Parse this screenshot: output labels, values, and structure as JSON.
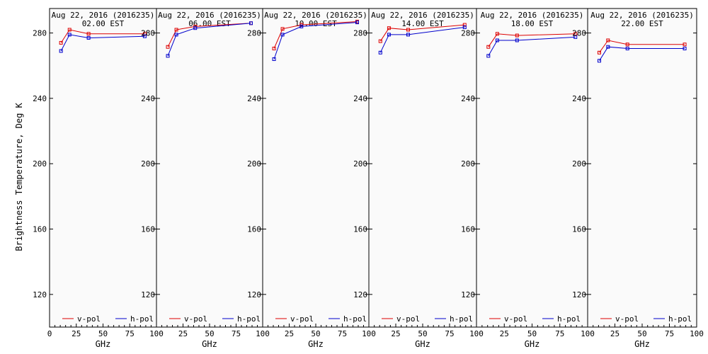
{
  "chart_data": {
    "type": "line",
    "ylabel": "Brightness Temperature, Deg K",
    "xlabel": "GHz",
    "ylim": [
      100,
      295
    ],
    "xlim": [
      0,
      100
    ],
    "yticks": [
      120,
      160,
      200,
      240,
      280
    ],
    "xticks": [
      0,
      25,
      50,
      75,
      100
    ],
    "series_colors": {
      "v-pol": "#dd0000",
      "h-pol": "#0000cc"
    },
    "legend": [
      "v-pol",
      "h-pol"
    ],
    "legend_placement": "bottom",
    "grid": false,
    "panels": [
      {
        "title": "Aug 22, 2016 (2016235)",
        "subtitle": "02.00 EST",
        "series": [
          {
            "name": "v-pol",
            "x": [
              10.7,
              18.7,
              36.5,
              89
            ],
            "y": [
              274,
              282,
              279.5,
              279.5
            ]
          },
          {
            "name": "h-pol",
            "x": [
              10.7,
              18.7,
              36.5,
              89
            ],
            "y": [
              269,
              279,
              277,
              278
            ]
          }
        ]
      },
      {
        "title": "Aug 22, 2016 (2016235)",
        "subtitle": "06.00 EST",
        "series": [
          {
            "name": "v-pol",
            "x": [
              10.7,
              18.7,
              36.5,
              89
            ],
            "y": [
              271.5,
              282,
              284,
              286
            ]
          },
          {
            "name": "h-pol",
            "x": [
              10.7,
              18.7,
              36.5,
              89
            ],
            "y": [
              266,
              279,
              283,
              286
            ]
          }
        ]
      },
      {
        "title": "Aug 22, 2016 (2016235)",
        "subtitle": "10.00 EST",
        "series": [
          {
            "name": "v-pol",
            "x": [
              10.7,
              18.7,
              36.5,
              89
            ],
            "y": [
              270.5,
              282.5,
              285,
              287
            ]
          },
          {
            "name": "h-pol",
            "x": [
              10.7,
              18.7,
              36.5,
              89
            ],
            "y": [
              264,
              279,
              284,
              286.5
            ]
          }
        ]
      },
      {
        "title": "Aug 22, 2016 (2016235)",
        "subtitle": "14.00 EST",
        "series": [
          {
            "name": "v-pol",
            "x": [
              10.7,
              18.7,
              36.5,
              89
            ],
            "y": [
              275,
              283,
              282,
              285
            ]
          },
          {
            "name": "h-pol",
            "x": [
              10.7,
              18.7,
              36.5,
              89
            ],
            "y": [
              268,
              279,
              279,
              283.5
            ]
          }
        ]
      },
      {
        "title": "Aug 22, 2016 (2016235)",
        "subtitle": "18.00 EST",
        "series": [
          {
            "name": "v-pol",
            "x": [
              10.7,
              18.7,
              36.5,
              89
            ],
            "y": [
              271.5,
              279.5,
              278.5,
              279.5
            ]
          },
          {
            "name": "h-pol",
            "x": [
              10.7,
              18.7,
              36.5,
              89
            ],
            "y": [
              266,
              275.5,
              275.5,
              277.5
            ]
          }
        ]
      },
      {
        "title": "Aug 22, 2016 (2016235)",
        "subtitle": "22.00 EST",
        "series": [
          {
            "name": "v-pol",
            "x": [
              10.7,
              18.7,
              36.5,
              89
            ],
            "y": [
              268,
              275.5,
              273,
              273
            ]
          },
          {
            "name": "h-pol",
            "x": [
              10.7,
              18.7,
              36.5,
              89
            ],
            "y": [
              263,
              271.5,
              270.5,
              270.5
            ]
          }
        ]
      }
    ]
  }
}
